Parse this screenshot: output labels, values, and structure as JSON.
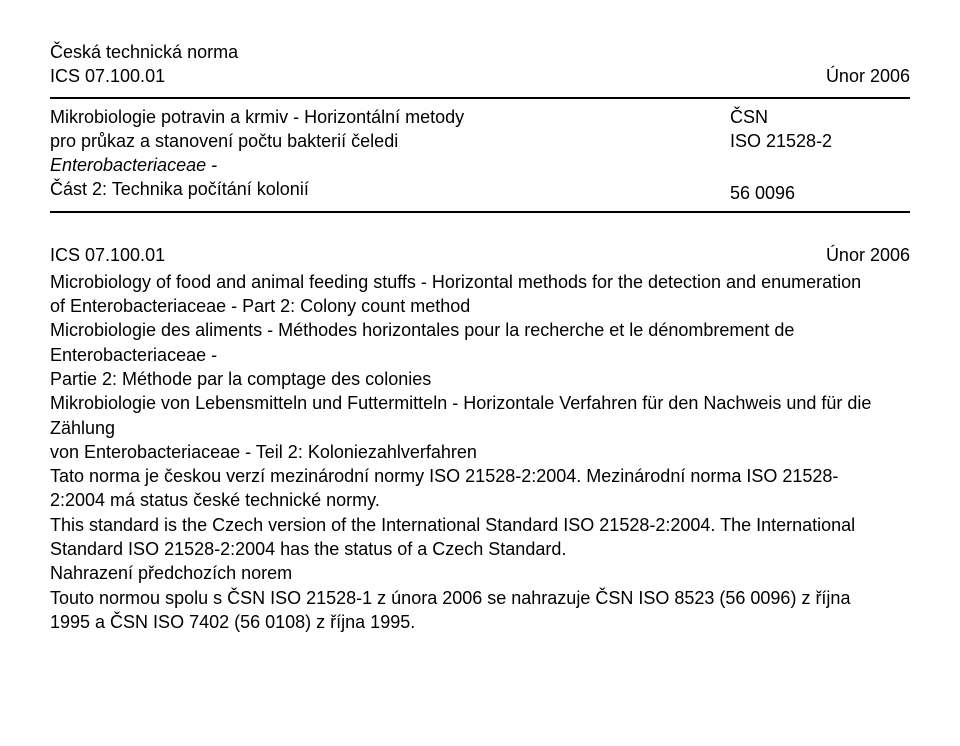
{
  "header": {
    "line1": "Česká technická norma",
    "ics_label": "ICS 07.100.01",
    "date": "Únor 2006"
  },
  "standard": {
    "title_line1_nonitalic": "Mikrobiologie potravin a krmiv - Horizontální metody",
    "title_line2_nonitalic": "pro průkaz a stanovení počtu bakterií čeledi",
    "title_line3_italic": "Enterobacteriaceae -",
    "title_line4_nonitalic": "Část 2: Technika počítání kolonií",
    "csn": "ČSN",
    "iso": "ISO 21528-2",
    "code": "56 0096"
  },
  "ics_block": {
    "ics": "ICS 07.100.01",
    "date": "Únor 2006"
  },
  "body": {
    "en_line1": "Microbiology of food and animal feeding stuffs - Horizontal methods for the detection and enumeration",
    "en_line2": "of Enterobacteriaceae - Part 2: Colony count method",
    "fr_line1": "Microbiologie des aliments - Méthodes horizontales pour la recherche et le dénombrement de",
    "fr_line2": "Enterobacteriaceae -",
    "fr_line3": "Partie 2: Méthode par la comptage des colonies",
    "de_line1": "Mikrobiologie von Lebensmitteln und Futtermitteln - Horizontale Verfahren für den Nachweis und für die",
    "de_line2": "Zählung",
    "de_line3": "von Enterobacteriaceae - Teil 2: Koloniezahlverfahren",
    "cz_line1": "Tato norma je českou verzí mezinárodní normy ISO 21528-2:2004. Mezinárodní norma ISO 21528-",
    "cz_line2": "2:2004 má status české technické normy.",
    "en2_line1": "This standard is the Czech version of the International Standard ISO 21528-2:2004. The International",
    "en2_line2": "Standard ISO 21528-2:2004 has the status of a Czech Standard.",
    "repl_head": "Nahrazení předchozích norem",
    "repl_line1": "Touto normou spolu s ČSN ISO 21528-1 z února 2006 se nahrazuje ČSN ISO 8523 (56 0096) z října",
    "repl_line2": "1995 a ČSN ISO 7402 (56 0108) z října 1995."
  },
  "colors": {
    "text": "#000000",
    "background": "#ffffff",
    "divider": "#000000"
  },
  "typography": {
    "font_family": "Arial",
    "base_size_pt": 14,
    "line_height": 1.35
  }
}
